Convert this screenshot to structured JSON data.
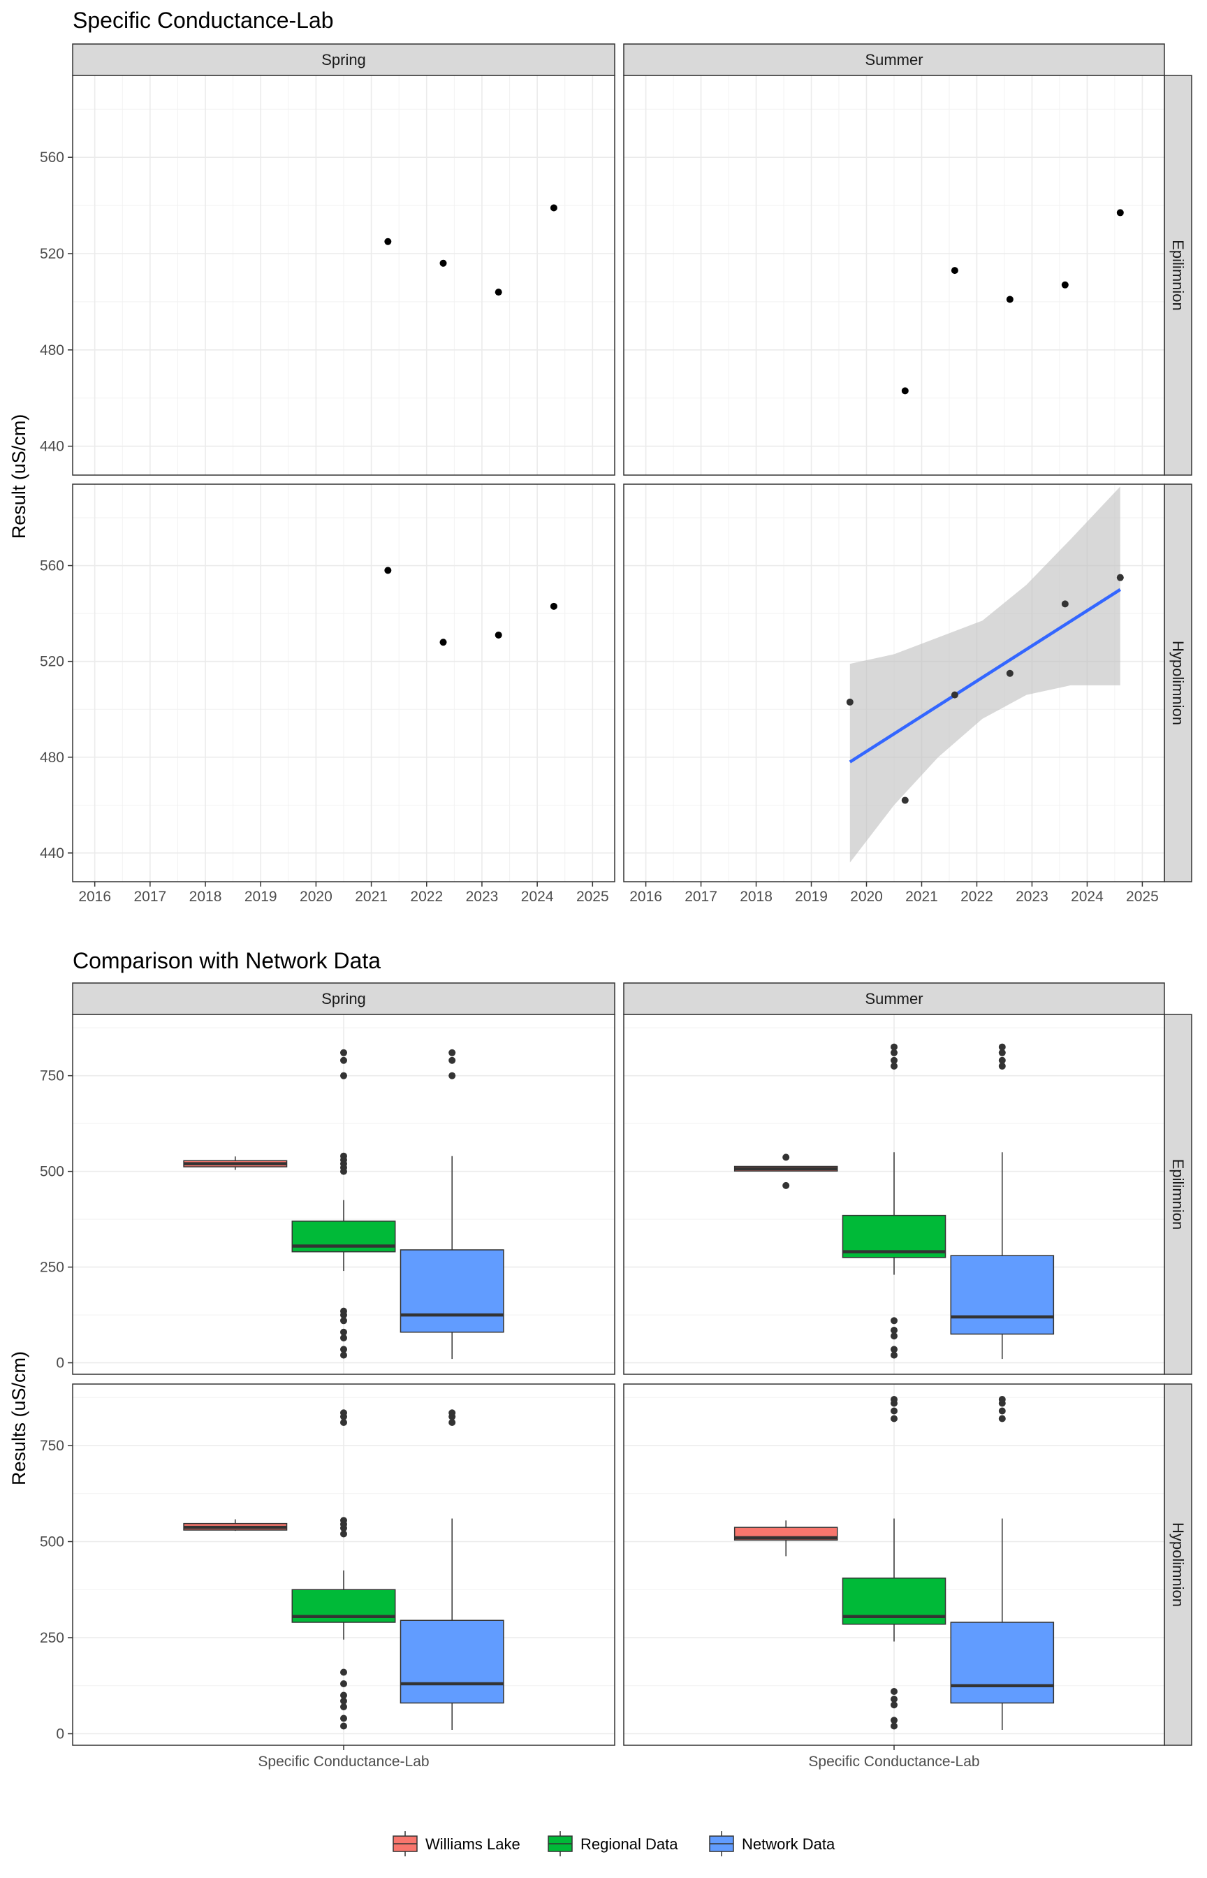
{
  "colors": {
    "williams_lake": "#F8766D",
    "regional": "#00BA38",
    "network": "#619CFF",
    "smooth_line": "#3366FF",
    "ribbon": "#BEBEBE",
    "strip_bg": "#D9D9D9",
    "grid": "#EBEBEB",
    "point": "#000000",
    "outlier": "#333333"
  },
  "chart_data": [
    {
      "type": "scatter",
      "title": "Specific Conductance-Lab",
      "xlabel": "",
      "ylabel": "Result (uS/cm)",
      "xlim": [
        2015.6,
        2025.4
      ],
      "ylim": [
        428,
        594
      ],
      "x_ticks": [
        2016,
        2017,
        2018,
        2019,
        2020,
        2021,
        2022,
        2023,
        2024,
        2025
      ],
      "y_ticks": [
        440,
        480,
        520,
        560
      ],
      "col_facets": [
        "Spring",
        "Summer"
      ],
      "row_facets": [
        "Epilimnion",
        "Hypolimnion"
      ],
      "grid": true,
      "panels": [
        {
          "col": "Spring",
          "row": "Epilimnion",
          "points": [
            {
              "x": 2021.3,
              "y": 525
            },
            {
              "x": 2022.3,
              "y": 516
            },
            {
              "x": 2023.3,
              "y": 504
            },
            {
              "x": 2024.3,
              "y": 539
            }
          ]
        },
        {
          "col": "Summer",
          "row": "Epilimnion",
          "points": [
            {
              "x": 2020.7,
              "y": 463
            },
            {
              "x": 2021.6,
              "y": 513
            },
            {
              "x": 2022.6,
              "y": 501
            },
            {
              "x": 2023.6,
              "y": 507
            },
            {
              "x": 2024.6,
              "y": 537
            }
          ]
        },
        {
          "col": "Spring",
          "row": "Hypolimnion",
          "points": [
            {
              "x": 2021.3,
              "y": 558
            },
            {
              "x": 2022.3,
              "y": 528
            },
            {
              "x": 2023.3,
              "y": 531
            },
            {
              "x": 2024.3,
              "y": 543
            }
          ]
        },
        {
          "col": "Summer",
          "row": "Hypolimnion",
          "points": [
            {
              "x": 2019.7,
              "y": 503
            },
            {
              "x": 2020.7,
              "y": 462
            },
            {
              "x": 2021.6,
              "y": 506
            },
            {
              "x": 2022.6,
              "y": 515
            },
            {
              "x": 2023.6,
              "y": 544
            },
            {
              "x": 2024.6,
              "y": 555
            }
          ],
          "smooth": {
            "method": "linear",
            "line": [
              {
                "x": 2019.7,
                "y": 478
              },
              {
                "x": 2024.6,
                "y": 550
              }
            ],
            "ribbon": [
              {
                "x": 2019.7,
                "lo": 436,
                "hi": 519
              },
              {
                "x": 2020.5,
                "lo": 460,
                "hi": 523
              },
              {
                "x": 2021.3,
                "lo": 480,
                "hi": 530
              },
              {
                "x": 2022.1,
                "lo": 496,
                "hi": 537
              },
              {
                "x": 2022.9,
                "lo": 506,
                "hi": 552
              },
              {
                "x": 2023.7,
                "lo": 510,
                "hi": 571
              },
              {
                "x": 2024.6,
                "lo": 510,
                "hi": 593
              }
            ]
          }
        }
      ]
    },
    {
      "type": "box",
      "title": "Comparison with Network Data",
      "xlabel": "",
      "ylabel": "Results (uS/cm)",
      "categories": [
        "Specific Conductance-Lab"
      ],
      "ylim": [
        -30,
        910
      ],
      "y_ticks": [
        0,
        250,
        500,
        750
      ],
      "col_facets": [
        "Spring",
        "Summer"
      ],
      "row_facets": [
        "Epilimnion",
        "Hypolimnion"
      ],
      "grid": true,
      "legend": {
        "position": "bottom",
        "entries": [
          "Williams Lake",
          "Regional Data",
          "Network Data"
        ]
      },
      "panels": [
        {
          "col": "Spring",
          "row": "Epilimnion",
          "boxes": [
            {
              "group": "Williams Lake",
              "lower_whisker": 504,
              "q1": 512,
              "median": 520,
              "q3": 528,
              "upper_whisker": 539,
              "outliers": []
            },
            {
              "group": "Regional Data",
              "lower_whisker": 240,
              "q1": 290,
              "median": 305,
              "q3": 370,
              "upper_whisker": 425,
              "outliers": [
                20,
                35,
                65,
                80,
                110,
                125,
                135,
                500,
                510,
                520,
                530,
                540,
                750,
                790,
                810
              ]
            },
            {
              "group": "Network Data",
              "lower_whisker": 10,
              "q1": 80,
              "median": 125,
              "q3": 295,
              "upper_whisker": 540,
              "outliers": [
                750,
                790,
                810
              ]
            }
          ]
        },
        {
          "col": "Summer",
          "row": "Epilimnion",
          "boxes": [
            {
              "group": "Williams Lake",
              "lower_whisker": 501,
              "q1": 501,
              "median": 507,
              "q3": 513,
              "upper_whisker": 513,
              "outliers": [
                463,
                537
              ]
            },
            {
              "group": "Regional Data",
              "lower_whisker": 230,
              "q1": 275,
              "median": 290,
              "q3": 385,
              "upper_whisker": 550,
              "outliers": [
                20,
                35,
                70,
                85,
                110,
                775,
                790,
                810,
                825
              ]
            },
            {
              "group": "Network Data",
              "lower_whisker": 10,
              "q1": 75,
              "median": 120,
              "q3": 280,
              "upper_whisker": 550,
              "outliers": [
                775,
                790,
                810,
                825
              ]
            }
          ]
        },
        {
          "col": "Spring",
          "row": "Hypolimnion",
          "boxes": [
            {
              "group": "Williams Lake",
              "lower_whisker": 528,
              "q1": 530,
              "median": 537,
              "q3": 547,
              "upper_whisker": 558,
              "outliers": []
            },
            {
              "group": "Regional Data",
              "lower_whisker": 245,
              "q1": 290,
              "median": 305,
              "q3": 375,
              "upper_whisker": 425,
              "outliers": [
                20,
                40,
                70,
                85,
                100,
                130,
                160,
                520,
                535,
                545,
                555,
                810,
                825,
                835
              ]
            },
            {
              "group": "Network Data",
              "lower_whisker": 10,
              "q1": 80,
              "median": 130,
              "q3": 295,
              "upper_whisker": 560,
              "outliers": [
                810,
                825,
                835
              ]
            }
          ]
        },
        {
          "col": "Summer",
          "row": "Hypolimnion",
          "boxes": [
            {
              "group": "Williams Lake",
              "lower_whisker": 462,
              "q1": 504,
              "median": 510,
              "q3": 537,
              "upper_whisker": 555,
              "outliers": []
            },
            {
              "group": "Regional Data",
              "lower_whisker": 240,
              "q1": 285,
              "median": 305,
              "q3": 405,
              "upper_whisker": 560,
              "outliers": [
                20,
                35,
                75,
                90,
                110,
                820,
                840,
                860,
                870
              ]
            },
            {
              "group": "Network Data",
              "lower_whisker": 10,
              "q1": 80,
              "median": 125,
              "q3": 290,
              "upper_whisker": 560,
              "outliers": [
                820,
                840,
                860,
                870
              ]
            }
          ]
        }
      ]
    }
  ]
}
